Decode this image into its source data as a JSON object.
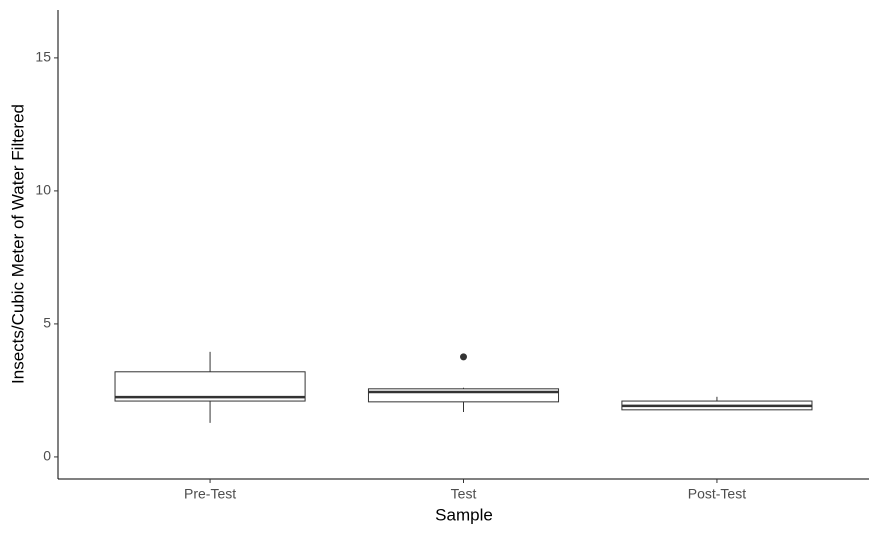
{
  "chart_data": {
    "type": "box",
    "xlabel": "Sample",
    "ylabel": "Insects/Cubic Meter of Water Filtered",
    "categories": [
      "Pre-Test",
      "Test",
      "Post-Test"
    ],
    "boxes": [
      {
        "min": 1.28,
        "q1": 2.1,
        "median": 2.25,
        "q3": 3.2,
        "max": 3.95,
        "outliers": []
      },
      {
        "min": 1.69,
        "q1": 2.07,
        "median": 2.44,
        "q3": 2.56,
        "max": 2.6,
        "outliers": [
          3.76
        ]
      },
      {
        "min": 1.77,
        "q1": 1.77,
        "median": 1.92,
        "q3": 2.1,
        "max": 2.26,
        "outliers": []
      }
    ],
    "color": "#333333",
    "ylim": [
      -0.83,
      16.8
    ],
    "yticks": [
      0,
      5,
      10,
      15
    ],
    "grid": false
  }
}
